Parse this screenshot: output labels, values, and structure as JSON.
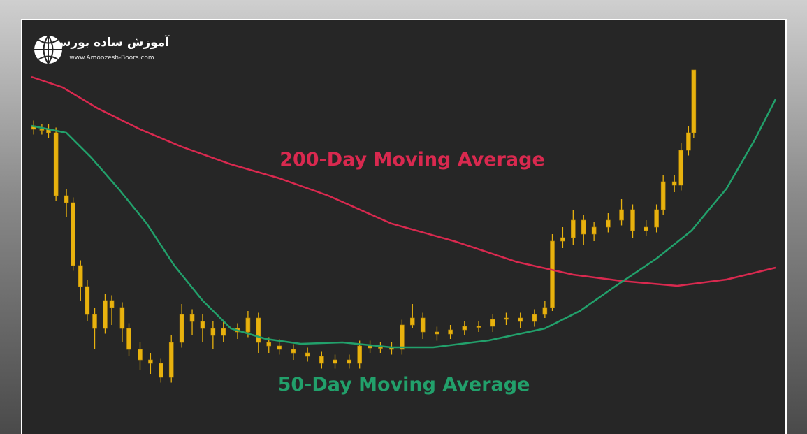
{
  "logo": {
    "title": "آموزش ساده بورس",
    "url": "www.Amoozesh-Boors.com"
  },
  "chart_data": {
    "type": "candlestick",
    "xlim": [
      0,
      100
    ],
    "ylim": [
      0,
      100
    ],
    "candles": {
      "color": "#e8b20e",
      "x": [
        0.3,
        1.4,
        2.3,
        3.3,
        4.7,
        5.6,
        6.6,
        7.5,
        8.5,
        9.9,
        10.8,
        12.2,
        13.1,
        14.6,
        16.0,
        17.4,
        18.8,
        20.2,
        21.6,
        23.0,
        24.4,
        25.8,
        27.7,
        29.1,
        30.5,
        31.9,
        33.3,
        35.2,
        37.1,
        39.0,
        40.8,
        42.7,
        44.1,
        45.5,
        46.9,
        48.4,
        49.8,
        51.2,
        52.6,
        54.5,
        56.3,
        58.2,
        60.1,
        62.0,
        63.8,
        65.7,
        67.6,
        69.0,
        70.0,
        71.4,
        72.8,
        74.2,
        75.6,
        77.5,
        79.3,
        80.8,
        82.6,
        84.0,
        84.9,
        86.4,
        87.3,
        88.3,
        89.0
      ],
      "open": [
        84,
        83,
        83,
        82,
        64,
        62,
        44,
        38,
        30,
        26,
        34,
        32,
        26,
        20,
        17,
        16,
        12,
        22,
        30,
        28,
        26,
        24,
        26,
        25,
        29,
        22,
        21,
        20,
        19,
        18,
        16,
        17,
        16,
        21,
        20.4,
        20.6,
        20,
        27,
        29,
        25,
        24.4,
        25.6,
        26.6,
        26.6,
        28.6,
        29,
        28,
        30,
        32,
        51,
        52,
        57,
        53,
        55,
        57,
        60,
        54,
        55,
        60,
        68,
        67,
        77,
        82
      ],
      "high": [
        85.5,
        84.5,
        84.5,
        83.5,
        66,
        63.5,
        45.5,
        40,
        32,
        36,
        35.5,
        33.5,
        27.5,
        22,
        19,
        17.5,
        24,
        33,
        31.5,
        30,
        28,
        28,
        27.5,
        31,
        30.5,
        23.5,
        23,
        21.5,
        20.5,
        19.5,
        18.5,
        18.5,
        22.5,
        22.5,
        22,
        22,
        28.5,
        33,
        30.5,
        26.5,
        27,
        28,
        28,
        30,
        30.5,
        30.5,
        31.5,
        34,
        53,
        55,
        60,
        58.5,
        56.5,
        59,
        63,
        61.5,
        57,
        61.5,
        70,
        70,
        79,
        84,
        100
      ],
      "low": [
        81.5,
        81.5,
        80.5,
        62.5,
        58,
        42.5,
        34,
        28,
        20,
        24.5,
        27,
        22,
        18,
        14,
        13,
        10.5,
        10.5,
        20.5,
        24,
        22,
        20,
        22,
        23,
        23.5,
        19,
        19,
        18.5,
        17,
        16.5,
        14.5,
        14.5,
        14.5,
        14.5,
        19,
        19,
        18.5,
        18.5,
        26,
        23,
        22.5,
        23,
        24,
        25,
        25,
        27,
        26,
        26.5,
        29,
        31,
        49,
        50,
        50,
        51,
        53.5,
        55.5,
        52,
        52.5,
        53.5,
        58.5,
        65,
        65.5,
        75.5,
        80.5
      ],
      "close": [
        83,
        83,
        82,
        64,
        62,
        44,
        38,
        30,
        26,
        34,
        32,
        26,
        20,
        17,
        16,
        12,
        22,
        30,
        28,
        26,
        24,
        26,
        25,
        29,
        22,
        21,
        20,
        19,
        18,
        16,
        17,
        16,
        21,
        20.4,
        20.6,
        20,
        27,
        29,
        25,
        24.4,
        25.6,
        26.6,
        26.6,
        28.6,
        29,
        28,
        30,
        32,
        51,
        52,
        57,
        53,
        55,
        57,
        60,
        54,
        55,
        60,
        68,
        67,
        77,
        82,
        100
      ]
    },
    "series": [
      {
        "name": "200-Day Moving Average",
        "color": "#d9294f",
        "x": [
          0,
          4.2,
          8.9,
          14.6,
          20.2,
          26.8,
          33.3,
          39.9,
          48.4,
          56.8,
          65.3,
          72.8,
          79.3,
          86.8,
          93.4,
          100
        ],
        "values": [
          98,
          95,
          89,
          83,
          78,
          73,
          69,
          64,
          56,
          51,
          45,
          41.4,
          39.6,
          38.2,
          40,
          43.4
        ]
      },
      {
        "name": "50-Day Moving Average",
        "color": "#22a06b",
        "x": [
          0,
          4.7,
          8.0,
          11.7,
          15.5,
          19.2,
          23.0,
          26.8,
          31.5,
          36.2,
          41.8,
          48.4,
          54.0,
          61.5,
          69.0,
          73.7,
          78.4,
          84.0,
          88.7,
          93.4,
          97.2,
          100
        ],
        "values": [
          84,
          82,
          75,
          66,
          56,
          44,
          34,
          26,
          23,
          21.6,
          22,
          20.6,
          20.6,
          22.6,
          26,
          31,
          38,
          46,
          54,
          66,
          80,
          91.6
        ]
      }
    ]
  }
}
